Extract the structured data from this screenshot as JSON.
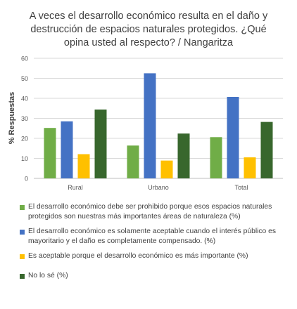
{
  "chart_data": {
    "type": "bar",
    "title": "A veces el desarrollo económico resulta en el daño y destrucción de espacios naturales protegidos. ¿Qué opina usted al respecto? / Nangaritza",
    "title_lines": [
      "A veces el desarrollo económico resulta en el daño y",
      "destrucción de espacios naturales protegidos. ¿Qué",
      "opina usted al respecto? / Nangaritza"
    ],
    "xlabel": "",
    "ylabel": "% Respuestas",
    "ylim": [
      0,
      60
    ],
    "yticks": [
      0,
      10,
      20,
      30,
      40,
      50,
      60
    ],
    "categories": [
      "Rural",
      "Urbano",
      "Total"
    ],
    "grid": true,
    "legend_position": "bottom",
    "series": [
      {
        "name": "El desarrollo económico debe ser prohibido porque esos espacios naturales protegidos son nuestras más importantes áreas de naturaleza (%)",
        "color": "#70ad47",
        "values": [
          25.2,
          16.4,
          20.6
        ]
      },
      {
        "name": "El desarrollo económico es solamente aceptable cuando el interés público es mayoritario y el daño es completamente compensado. (%)",
        "color": "#4472c4",
        "values": [
          28.5,
          52.5,
          40.7
        ]
      },
      {
        "name": "Es aceptable porque el desarrollo económico es más importante (%)",
        "color": "#ffc000",
        "values": [
          12.1,
          8.9,
          10.5
        ]
      },
      {
        "name": "No lo sé (%)",
        "color": "#38672d",
        "values": [
          34.4,
          22.4,
          28.2
        ]
      }
    ]
  }
}
